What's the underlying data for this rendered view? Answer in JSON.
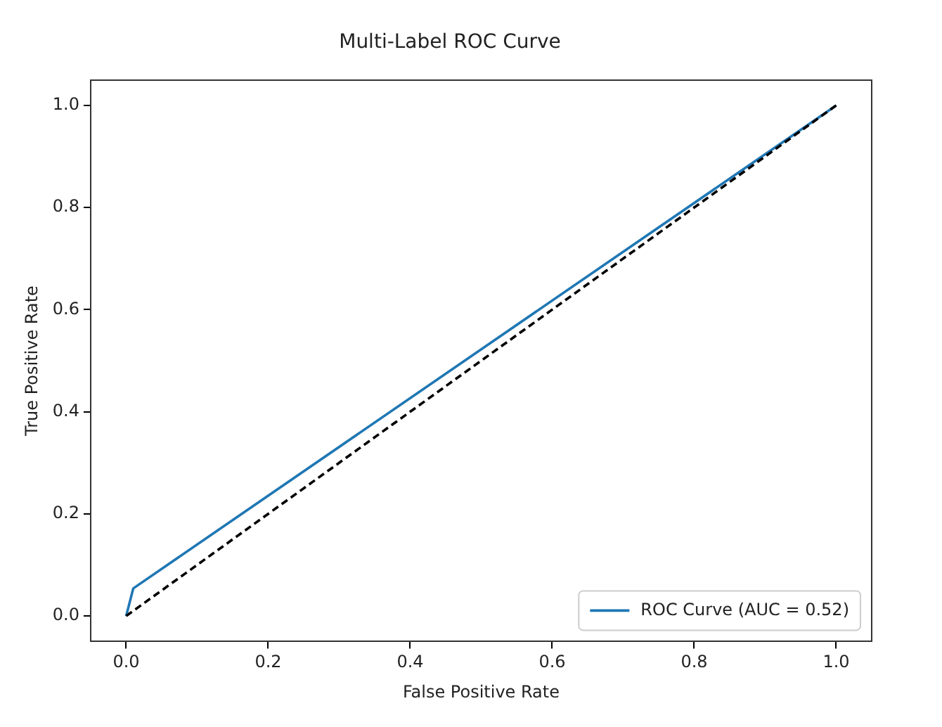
{
  "chart_data": {
    "type": "line",
    "title": "Multi-Label ROC Curve",
    "xlabel": "False Positive Rate",
    "ylabel": "True Positive Rate",
    "xlim": [
      -0.05,
      1.05
    ],
    "ylim": [
      -0.05,
      1.05
    ],
    "xticks": [
      {
        "value": 0,
        "label": "0.0"
      },
      {
        "value": 0.2,
        "label": "0.2"
      },
      {
        "value": 0.4,
        "label": "0.4"
      },
      {
        "value": 0.6,
        "label": "0.6"
      },
      {
        "value": 0.8,
        "label": "0.8"
      },
      {
        "value": 1,
        "label": "1.0"
      }
    ],
    "yticks": [
      {
        "value": 0,
        "label": "0.0"
      },
      {
        "value": 0.2,
        "label": "0.2"
      },
      {
        "value": 0.4,
        "label": "0.4"
      },
      {
        "value": 0.6,
        "label": "0.6"
      },
      {
        "value": 0.8,
        "label": "0.8"
      },
      {
        "value": 1,
        "label": "1.0"
      }
    ],
    "legend": "bottom right",
    "grid": false,
    "marker": "none",
    "series": [
      {
        "name": "ROC Curve (AUC = 0.52)",
        "color": "#1f77b4",
        "x": [
          0,
          0.01,
          1
        ],
        "values": [
          0,
          0.054,
          1
        ],
        "line_style": "solid"
      },
      {
        "color": "#000000",
        "x": [
          0,
          1
        ],
        "values": [
          0,
          1
        ],
        "line_style": "dashed"
      }
    ]
  }
}
